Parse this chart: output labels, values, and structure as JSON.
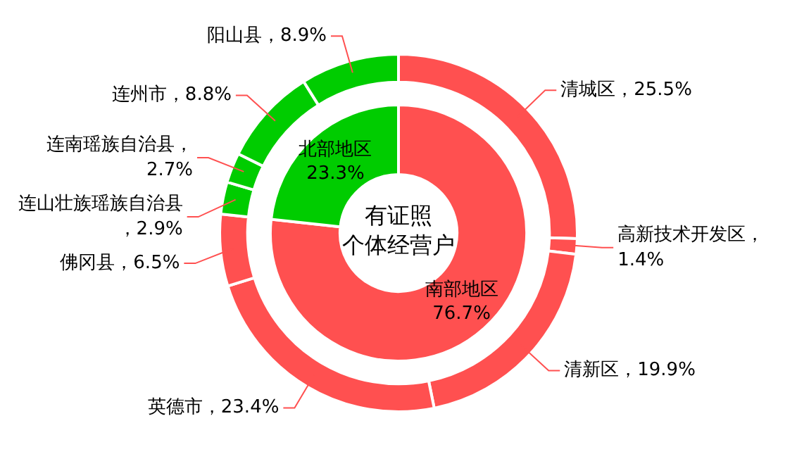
{
  "chart_data": [
    {
      "type": "donut",
      "title": "有证照个体经营户",
      "categories": [
        "南部地区",
        "北部地区"
      ],
      "values": [
        76.7,
        23.3
      ],
      "colors": [
        "#ff5050",
        "#00cc00"
      ],
      "value_labels": [
        "76.7%",
        "23.3%"
      ]
    },
    {
      "type": "donut",
      "categories": [
        "清城区",
        "高新技术开发区",
        "清新区",
        "英德市",
        "佛冈县",
        "连山壮族瑶族自治县",
        "连南瑶族自治县",
        "连州市",
        "阳山县"
      ],
      "values": [
        25.5,
        1.4,
        19.9,
        23.4,
        6.5,
        2.9,
        2.7,
        8.8,
        8.9
      ],
      "colors": [
        "#ff5050",
        "#ff5050",
        "#ff5050",
        "#ff5050",
        "#ff5050",
        "#00cc00",
        "#00cc00",
        "#00cc00",
        "#00cc00"
      ],
      "value_labels": [
        "，25.5%",
        "，1.4%",
        "，19.9%",
        "，23.4%",
        "，6.5%",
        "，2.9%",
        "，2.7%",
        "，8.8%",
        "，8.9%"
      ]
    }
  ]
}
